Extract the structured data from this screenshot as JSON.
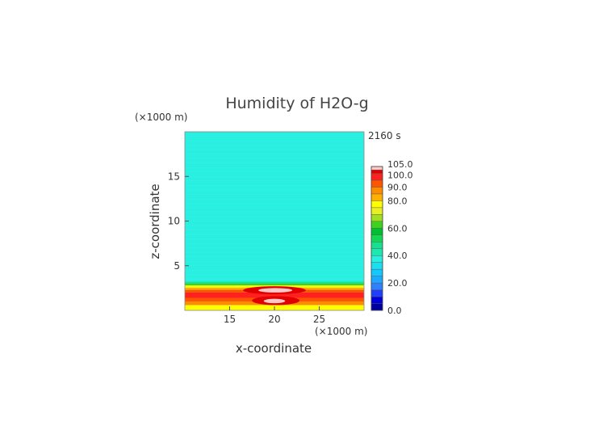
{
  "chart_data": {
    "type": "heatmap",
    "title": "Humidity of H2O-g",
    "xlabel": "x-coordinate",
    "ylabel": "z-coordinate",
    "x_unit": "(×1000 m)",
    "y_unit": "(×1000 m)",
    "time_label": "2160 s",
    "xlim": [
      10,
      30
    ],
    "ylim": [
      0,
      20
    ],
    "x_ticks": [
      "15",
      "20",
      "25"
    ],
    "x_tick_values": [
      15,
      20,
      25
    ],
    "y_ticks": [
      "5",
      "10",
      "15"
    ],
    "y_tick_values": [
      5,
      10,
      15
    ],
    "colorbar": {
      "min": 0,
      "max": 105,
      "labels": [
        "0.0",
        "20.0",
        "40.0",
        "60.0",
        "80.0",
        "90.0",
        "100.0",
        "105.0"
      ],
      "label_values": [
        0,
        20,
        40,
        60,
        80,
        90,
        100,
        105
      ],
      "levels": [
        {
          "from": 0,
          "to": 5,
          "color": "#0000a0"
        },
        {
          "from": 5,
          "to": 10,
          "color": "#0000d8"
        },
        {
          "from": 10,
          "to": 15,
          "color": "#1f3fff"
        },
        {
          "from": 15,
          "to": 20,
          "color": "#2f7fff"
        },
        {
          "from": 20,
          "to": 25,
          "color": "#1fa8ff"
        },
        {
          "from": 25,
          "to": 30,
          "color": "#14c8ff"
        },
        {
          "from": 30,
          "to": 35,
          "color": "#18e0f0"
        },
        {
          "from": 35,
          "to": 40,
          "color": "#28f0e0"
        },
        {
          "from": 40,
          "to": 45,
          "color": "#1ee8b0"
        },
        {
          "from": 45,
          "to": 50,
          "color": "#18e090"
        },
        {
          "from": 50,
          "to": 55,
          "color": "#10d850"
        },
        {
          "from": 55,
          "to": 60,
          "color": "#00c030"
        },
        {
          "from": 60,
          "to": 65,
          "color": "#40d020"
        },
        {
          "from": 65,
          "to": 70,
          "color": "#a0e020"
        },
        {
          "from": 70,
          "to": 75,
          "color": "#e8f020"
        },
        {
          "from": 75,
          "to": 80,
          "color": "#ffff00"
        },
        {
          "from": 80,
          "to": 85,
          "color": "#ffb000"
        },
        {
          "from": 85,
          "to": 90,
          "color": "#ff8c00"
        },
        {
          "from": 90,
          "to": 95,
          "color": "#ff5500"
        },
        {
          "from": 95,
          "to": 100,
          "color": "#ff2020"
        },
        {
          "from": 100,
          "to": 102.5,
          "color": "#e00000"
        },
        {
          "from": 102.5,
          "to": 105,
          "color": "#ffc8c8"
        }
      ]
    },
    "field": {
      "background_value": 38,
      "bands": [
        {
          "z_from": 0,
          "z_to": 0.6,
          "value": 77
        },
        {
          "z_from": 0.6,
          "z_to": 1.0,
          "value": 88
        },
        {
          "z_from": 1.0,
          "z_to": 1.4,
          "value": 93
        },
        {
          "z_from": 1.4,
          "z_to": 2.0,
          "value": 96
        },
        {
          "z_from": 2.0,
          "z_to": 2.3,
          "value": 91
        },
        {
          "z_from": 2.3,
          "z_to": 2.55,
          "value": 84
        },
        {
          "z_from": 2.55,
          "z_to": 2.8,
          "value": 76
        },
        {
          "z_from": 2.8,
          "z_to": 3.0,
          "value": 63
        },
        {
          "z_from": 3.0,
          "z_to": 3.2,
          "value": 45
        }
      ],
      "blobs": [
        {
          "x_from": 16.5,
          "x_to": 23.5,
          "z_from": 1.8,
          "z_to": 2.7,
          "value": 101
        },
        {
          "x_from": 17.5,
          "x_to": 22.8,
          "z_from": 0.6,
          "z_to": 1.6,
          "value": 101
        },
        {
          "x_from": 18.2,
          "x_to": 22.0,
          "z_from": 2.0,
          "z_to": 2.5,
          "value": 104
        },
        {
          "x_from": 18.8,
          "x_to": 21.2,
          "z_from": 0.8,
          "z_to": 1.3,
          "value": 104
        }
      ]
    }
  }
}
